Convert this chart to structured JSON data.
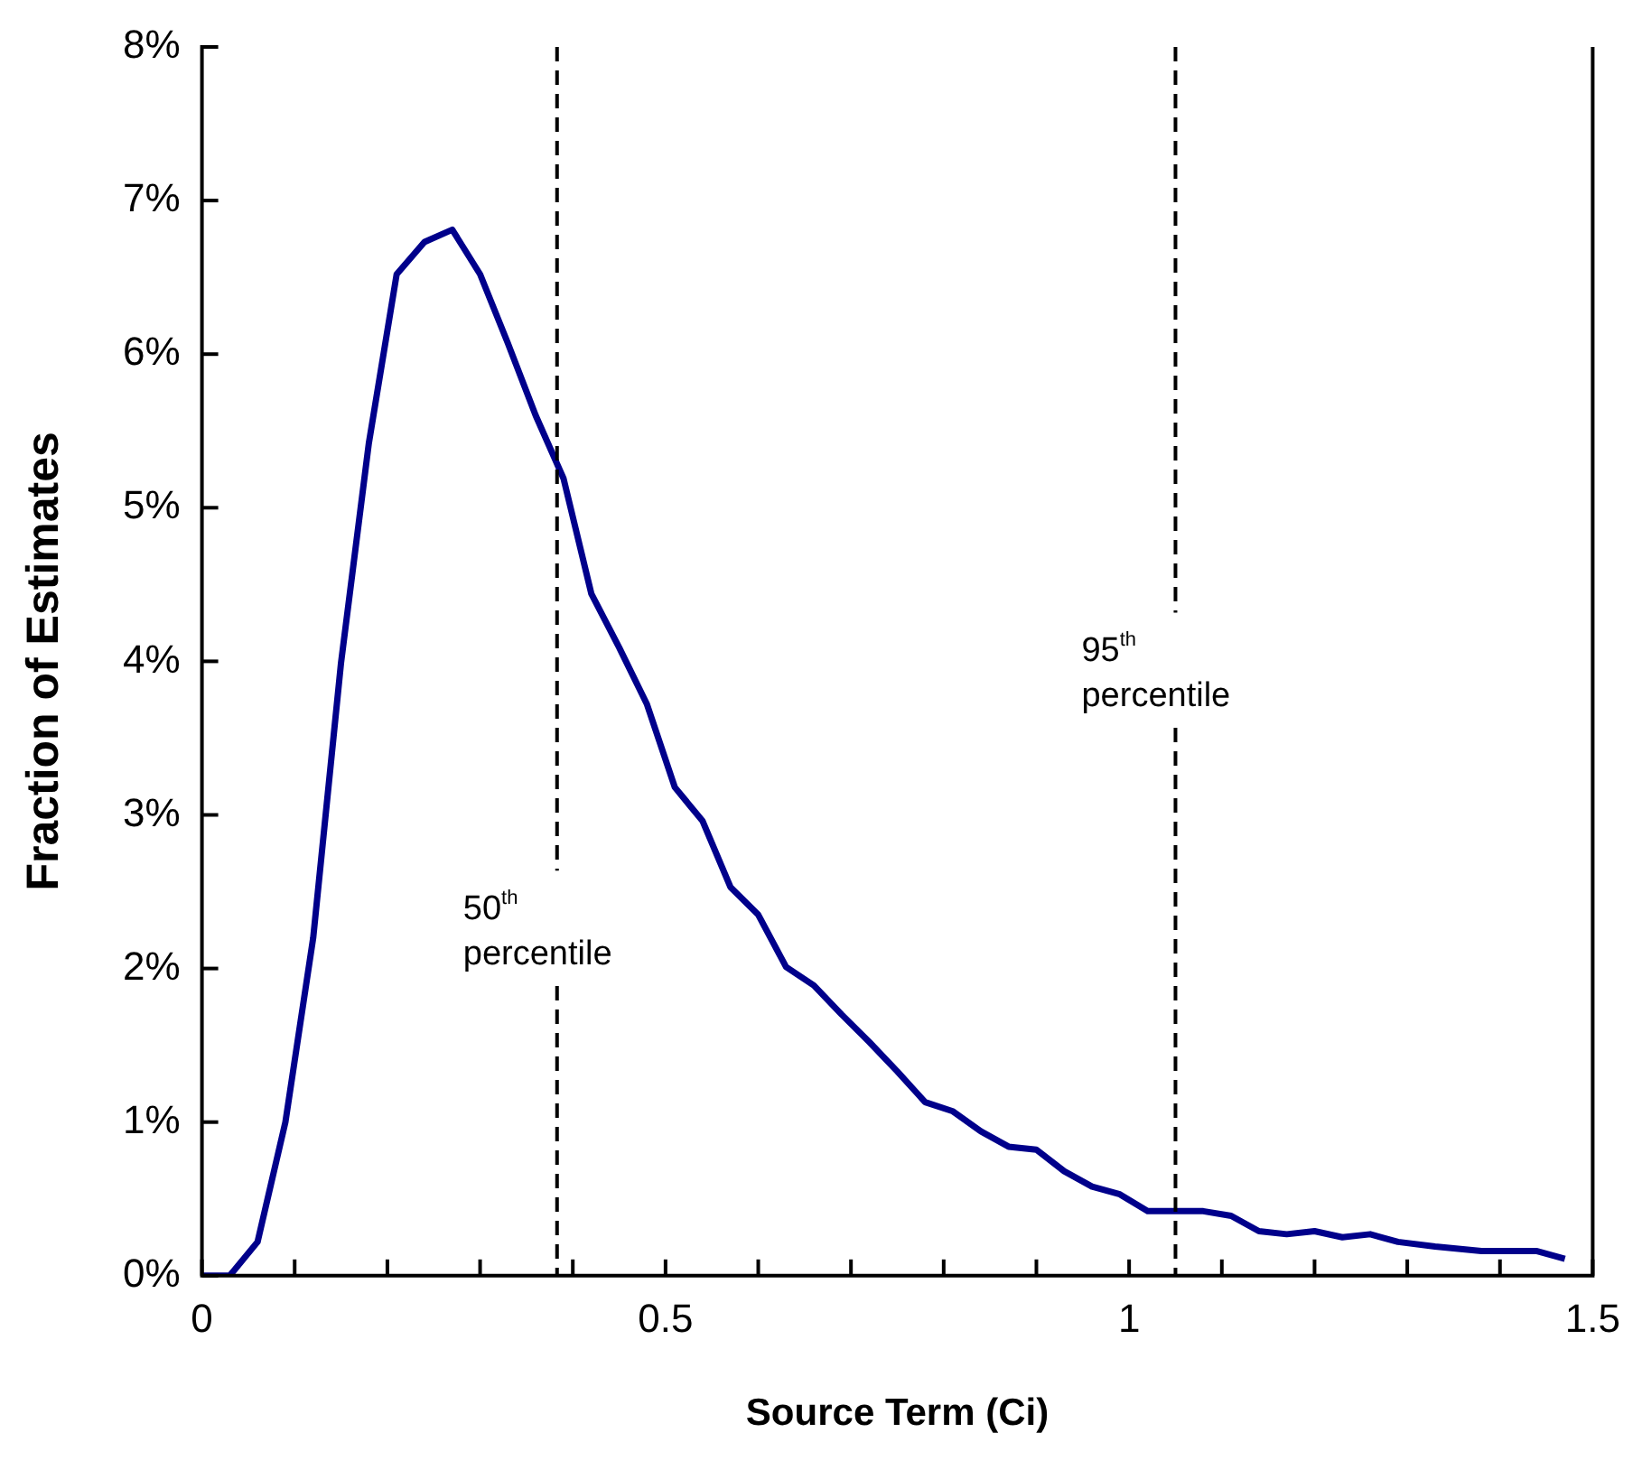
{
  "chart_data": {
    "type": "line",
    "xlabel": "Source Term (Ci)",
    "ylabel": "Fraction of Estimates",
    "x": [
      0,
      0.03,
      0.06,
      0.09,
      0.12,
      0.15,
      0.18,
      0.21,
      0.24,
      0.27,
      0.3,
      0.33,
      0.36,
      0.39,
      0.42,
      0.45,
      0.48,
      0.51,
      0.54,
      0.57,
      0.6,
      0.63,
      0.66,
      0.69,
      0.72,
      0.75,
      0.78,
      0.81,
      0.84,
      0.87,
      0.9,
      0.93,
      0.96,
      0.99,
      1.02,
      1.05,
      1.08,
      1.11,
      1.14,
      1.17,
      1.2,
      1.23,
      1.26,
      1.29,
      1.33,
      1.38,
      1.44,
      1.47
    ],
    "series": [
      {
        "color": "#00008b",
        "values": [
          0,
          0,
          0.22,
          1.0,
          2.2,
          3.99,
          5.42,
          6.52,
          6.73,
          6.81,
          6.52,
          6.07,
          5.6,
          5.19,
          4.44,
          4.09,
          3.72,
          3.18,
          2.96,
          2.53,
          2.35,
          2.01,
          1.89,
          1.7,
          1.52,
          1.33,
          1.13,
          1.07,
          0.94,
          0.84,
          0.82,
          0.68,
          0.58,
          0.53,
          0.42,
          0.42,
          0.42,
          0.39,
          0.29,
          0.27,
          0.29,
          0.25,
          0.27,
          0.22,
          0.19,
          0.16,
          0.16,
          0.11
        ]
      }
    ],
    "xlim": [
      0,
      1.5
    ],
    "xticks": [
      0,
      {
        "value": 0.1,
        "label": null
      },
      {
        "value": 0.2,
        "label": null
      },
      {
        "value": 0.3,
        "label": null
      },
      {
        "value": 0.4,
        "label": null
      },
      0.5,
      {
        "value": 0.6,
        "label": null
      },
      {
        "value": 0.7,
        "label": null
      },
      {
        "value": 0.8,
        "label": null
      },
      {
        "value": 0.9,
        "label": null
      },
      1,
      {
        "value": 1.1,
        "label": null
      },
      {
        "value": 1.2,
        "label": null
      },
      {
        "value": 1.3,
        "label": null
      },
      {
        "value": 1.4,
        "label": null
      },
      1.5
    ],
    "ylim": [
      0,
      8
    ],
    "yticks": [
      {
        "value": 0,
        "label": "0%"
      },
      {
        "value": 1,
        "label": "1%"
      },
      {
        "value": 2,
        "label": "2%"
      },
      {
        "value": 3,
        "label": "3%"
      },
      {
        "value": 4,
        "label": "4%"
      },
      {
        "value": 5,
        "label": "5%"
      },
      {
        "value": 6,
        "label": "6%"
      },
      {
        "value": 7,
        "label": "7%"
      },
      {
        "value": 8,
        "label": "8%"
      }
    ],
    "ref_lines": [
      {
        "axis": "x",
        "value": 0.383,
        "label": "50$^{th}$ percentile",
        "color": "#000000",
        "line_style": "dashed"
      },
      {
        "axis": "x",
        "value": 1.05,
        "label": "95$^{th}$ percentile",
        "color": "#000000",
        "line_style": "dashed"
      }
    ],
    "legend": false,
    "marker": "none",
    "line_style": "solid"
  }
}
